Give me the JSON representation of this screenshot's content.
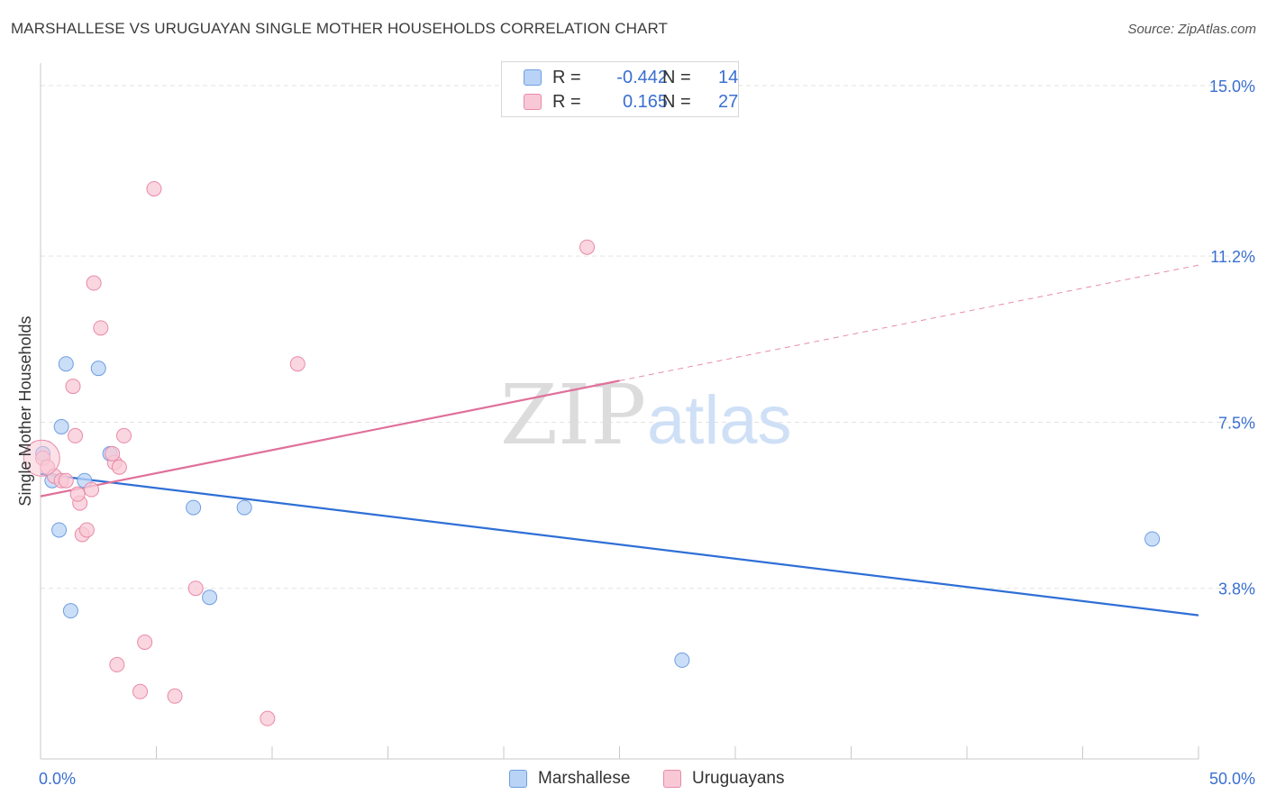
{
  "title": "MARSHALLESE VS URUGUAYAN SINGLE MOTHER HOUSEHOLDS CORRELATION CHART",
  "source": "Source: ZipAtlas.com",
  "watermark": {
    "zip": "ZIP",
    "atlas": "atlas"
  },
  "legend": [
    {
      "r_label": "R =",
      "r_value": "-0.442",
      "n_label": "N =",
      "n_value": "14",
      "color": "#a9c9f2",
      "border": "#6f9ee0"
    },
    {
      "r_label": "R =",
      "r_value": "0.165",
      "n_label": "N =",
      "n_value": "27",
      "color": "#f8c3d3",
      "border": "#e98aa8"
    }
  ],
  "bottom_legend": [
    {
      "label": "Marshallese"
    },
    {
      "label": "Uruguayans"
    }
  ],
  "chart_data": {
    "type": "scatter",
    "title": "MARSHALLESE VS URUGUAYAN SINGLE MOTHER HOUSEHOLDS CORRELATION CHART",
    "xlabel": "",
    "ylabel": "Single Mother Households",
    "xlim": [
      0,
      50
    ],
    "ylim": [
      0,
      15.5
    ],
    "x_tick_labels": [
      "0.0%",
      "50.0%"
    ],
    "y_ticks": [
      3.8,
      7.5,
      11.2,
      15.0
    ],
    "y_tick_labels": [
      "3.8%",
      "7.5%",
      "11.2%",
      "15.0%"
    ],
    "grid": true,
    "series": [
      {
        "name": "Marshallese",
        "color": "#6f9ee0",
        "fill": "#b8d3f5",
        "points": [
          [
            0.1,
            6.8
          ],
          [
            0.5,
            6.2
          ],
          [
            0.8,
            5.1
          ],
          [
            0.9,
            7.4
          ],
          [
            1.1,
            8.8
          ],
          [
            1.3,
            3.3
          ],
          [
            1.9,
            6.2
          ],
          [
            2.5,
            8.7
          ],
          [
            3.0,
            6.8
          ],
          [
            6.6,
            5.6
          ],
          [
            8.8,
            5.6
          ],
          [
            7.3,
            3.6
          ],
          [
            27.7,
            2.2
          ],
          [
            48.0,
            4.9
          ]
        ],
        "trend": {
          "x0": 0,
          "y0": 6.35,
          "x1": 50,
          "y1": 3.2,
          "solid_to": 50,
          "color": "#2f6fd6"
        }
      },
      {
        "name": "Uruguayans",
        "color": "#e98aa8",
        "fill": "#f8c8d6",
        "points": [
          [
            0.1,
            6.7
          ],
          [
            0.3,
            6.5
          ],
          [
            0.6,
            6.3
          ],
          [
            0.9,
            6.2
          ],
          [
            1.1,
            6.2
          ],
          [
            1.4,
            8.3
          ],
          [
            1.5,
            7.2
          ],
          [
            1.7,
            5.7
          ],
          [
            1.8,
            5.0
          ],
          [
            2.0,
            5.1
          ],
          [
            2.3,
            10.6
          ],
          [
            2.6,
            9.6
          ],
          [
            3.2,
            6.6
          ],
          [
            3.1,
            6.8
          ],
          [
            3.6,
            7.2
          ],
          [
            3.4,
            6.5
          ],
          [
            4.3,
            1.5
          ],
          [
            4.5,
            2.6
          ],
          [
            4.9,
            12.7
          ],
          [
            5.8,
            1.4
          ],
          [
            6.7,
            3.8
          ],
          [
            11.1,
            8.8
          ],
          [
            23.6,
            11.4
          ],
          [
            3.3,
            2.1
          ],
          [
            9.8,
            0.9
          ],
          [
            1.6,
            5.9
          ],
          [
            2.2,
            6.0
          ]
        ],
        "trend": {
          "x0": 0,
          "y0": 5.85,
          "x1": 50,
          "y1": 11.0,
          "solid_to": 25,
          "color": "#e0709a"
        }
      }
    ]
  }
}
